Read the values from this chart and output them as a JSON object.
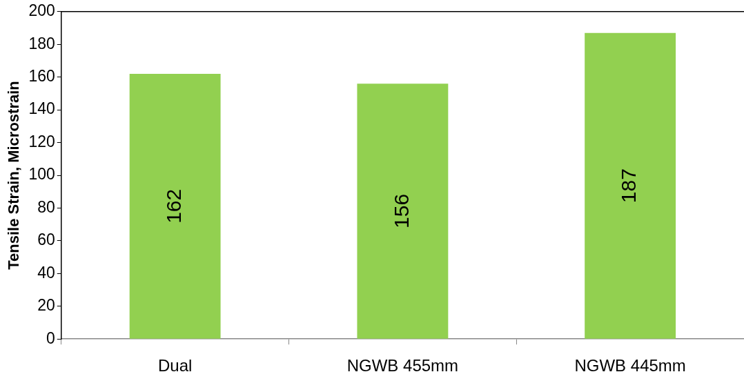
{
  "chart_data": {
    "type": "bar",
    "ylabel": "Tensile Strain, Microstrain",
    "categories": [
      "Dual",
      "NGWB 455mm",
      "NGWB 445mm"
    ],
    "values": [
      162,
      156,
      187
    ],
    "color": "#92d050",
    "ylim": [
      0,
      200
    ],
    "yticks": [
      0,
      20,
      40,
      60,
      80,
      100,
      120,
      140,
      160,
      180,
      200
    ],
    "grid": false,
    "legend": false,
    "data_labels": true
  }
}
